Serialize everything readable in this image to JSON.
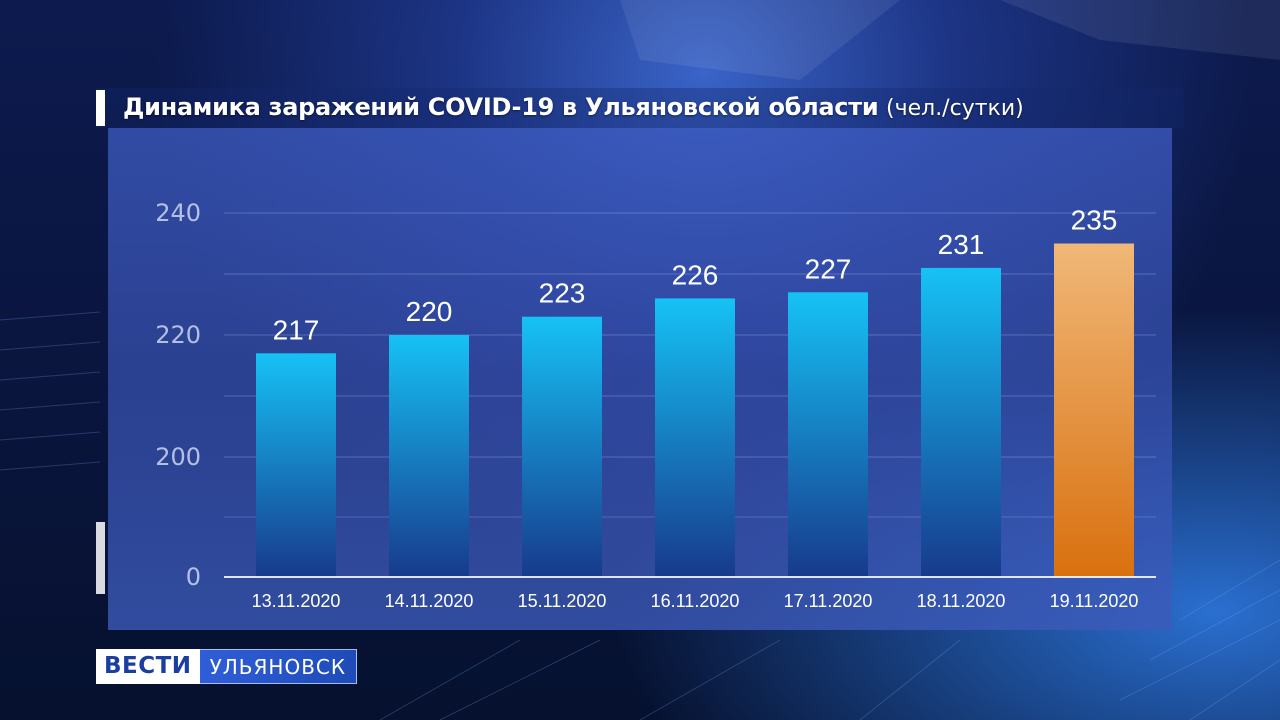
{
  "header": {
    "title": "Динамика заражений COVID-19 в Ульяновской области",
    "unit": "(чел./сутки)"
  },
  "logo": {
    "brand": "ВЕСТИ",
    "region": "УЛЬЯНОВСК"
  },
  "colors": {
    "bar_blue_top": "#16c2f5",
    "bar_blue_bottom": "#173a8c",
    "bar_highlight_top": "#f0b878",
    "bar_highlight_bottom": "#d9700f"
  },
  "chart_data": {
    "type": "bar",
    "title": "Динамика заражений COVID-19 в Ульяновской области",
    "ylabel": "чел./сутки",
    "xlabel": "",
    "categories": [
      "13.11.2020",
      "14.11.2020",
      "15.11.2020",
      "16.11.2020",
      "17.11.2020",
      "18.11.2020",
      "19.11.2020"
    ],
    "values": [
      217,
      220,
      223,
      226,
      227,
      231,
      235
    ],
    "highlight_index": 6,
    "yticks": [
      0,
      200,
      220,
      240
    ],
    "axis_break": "between 0 and 200",
    "grid": true,
    "legend": "none"
  }
}
